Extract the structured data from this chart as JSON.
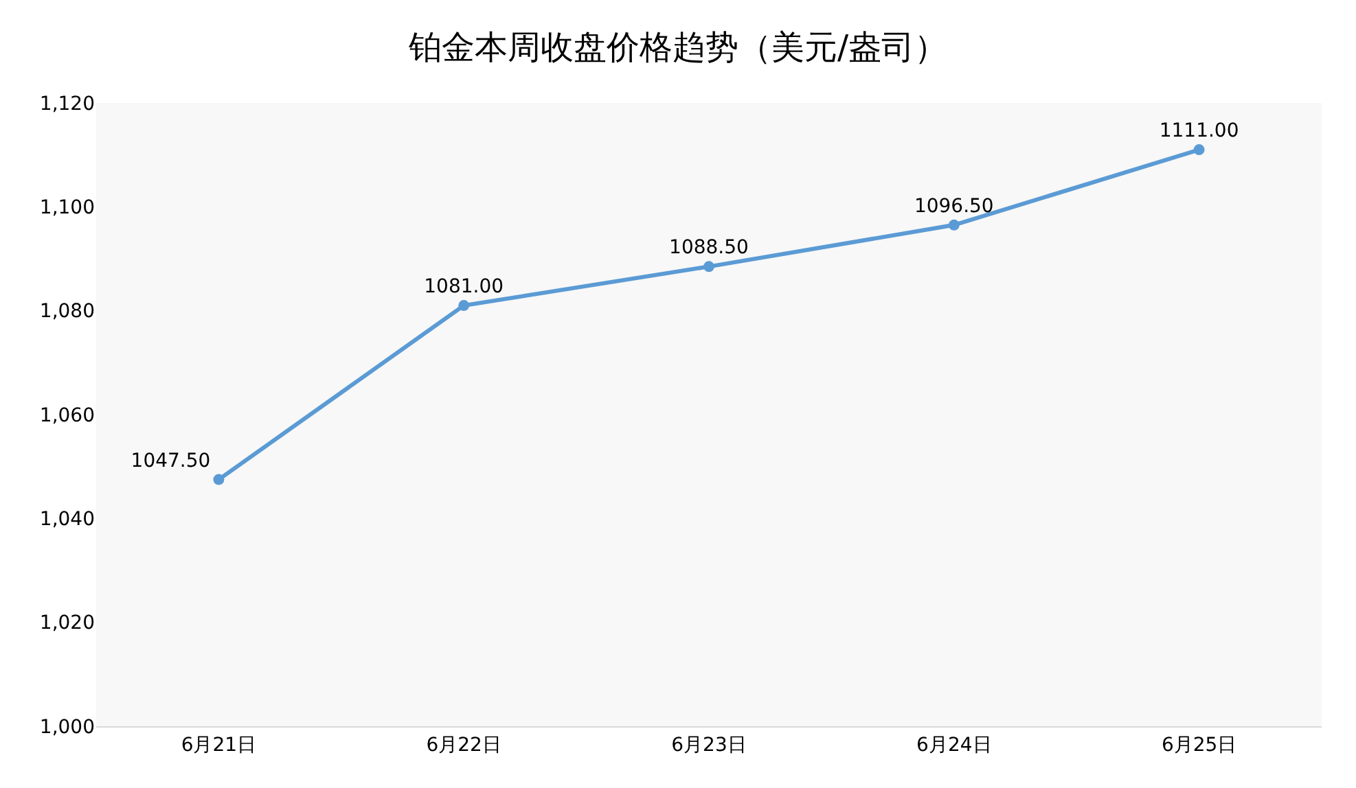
{
  "chart_data": {
    "type": "line",
    "title": "铂金本周收盘价格趋势（美元/盎司）",
    "categories": [
      "6月21日",
      "6月22日",
      "6月23日",
      "6月24日",
      "6月25日"
    ],
    "series": [
      {
        "color": "#5b9bd5",
        "values": [
          1047.5,
          1081.0,
          1088.5,
          1096.5,
          1111.0
        ],
        "value_labels": [
          "1047.50",
          "1081.00",
          "1088.50",
          "1096.50",
          "1111.00"
        ]
      }
    ],
    "ylim": [
      1000,
      1120
    ],
    "yticks": [
      {
        "value": 1000,
        "label": "1,000"
      },
      {
        "value": 1020,
        "label": "1,020"
      },
      {
        "value": 1040,
        "label": "1,040"
      },
      {
        "value": 1060,
        "label": "1,060"
      },
      {
        "value": 1080,
        "label": "1,080"
      },
      {
        "value": 1100,
        "label": "1,100"
      },
      {
        "value": 1120,
        "label": "1,120"
      }
    ],
    "grid": false,
    "marker": "circle",
    "line_style": "solid"
  }
}
